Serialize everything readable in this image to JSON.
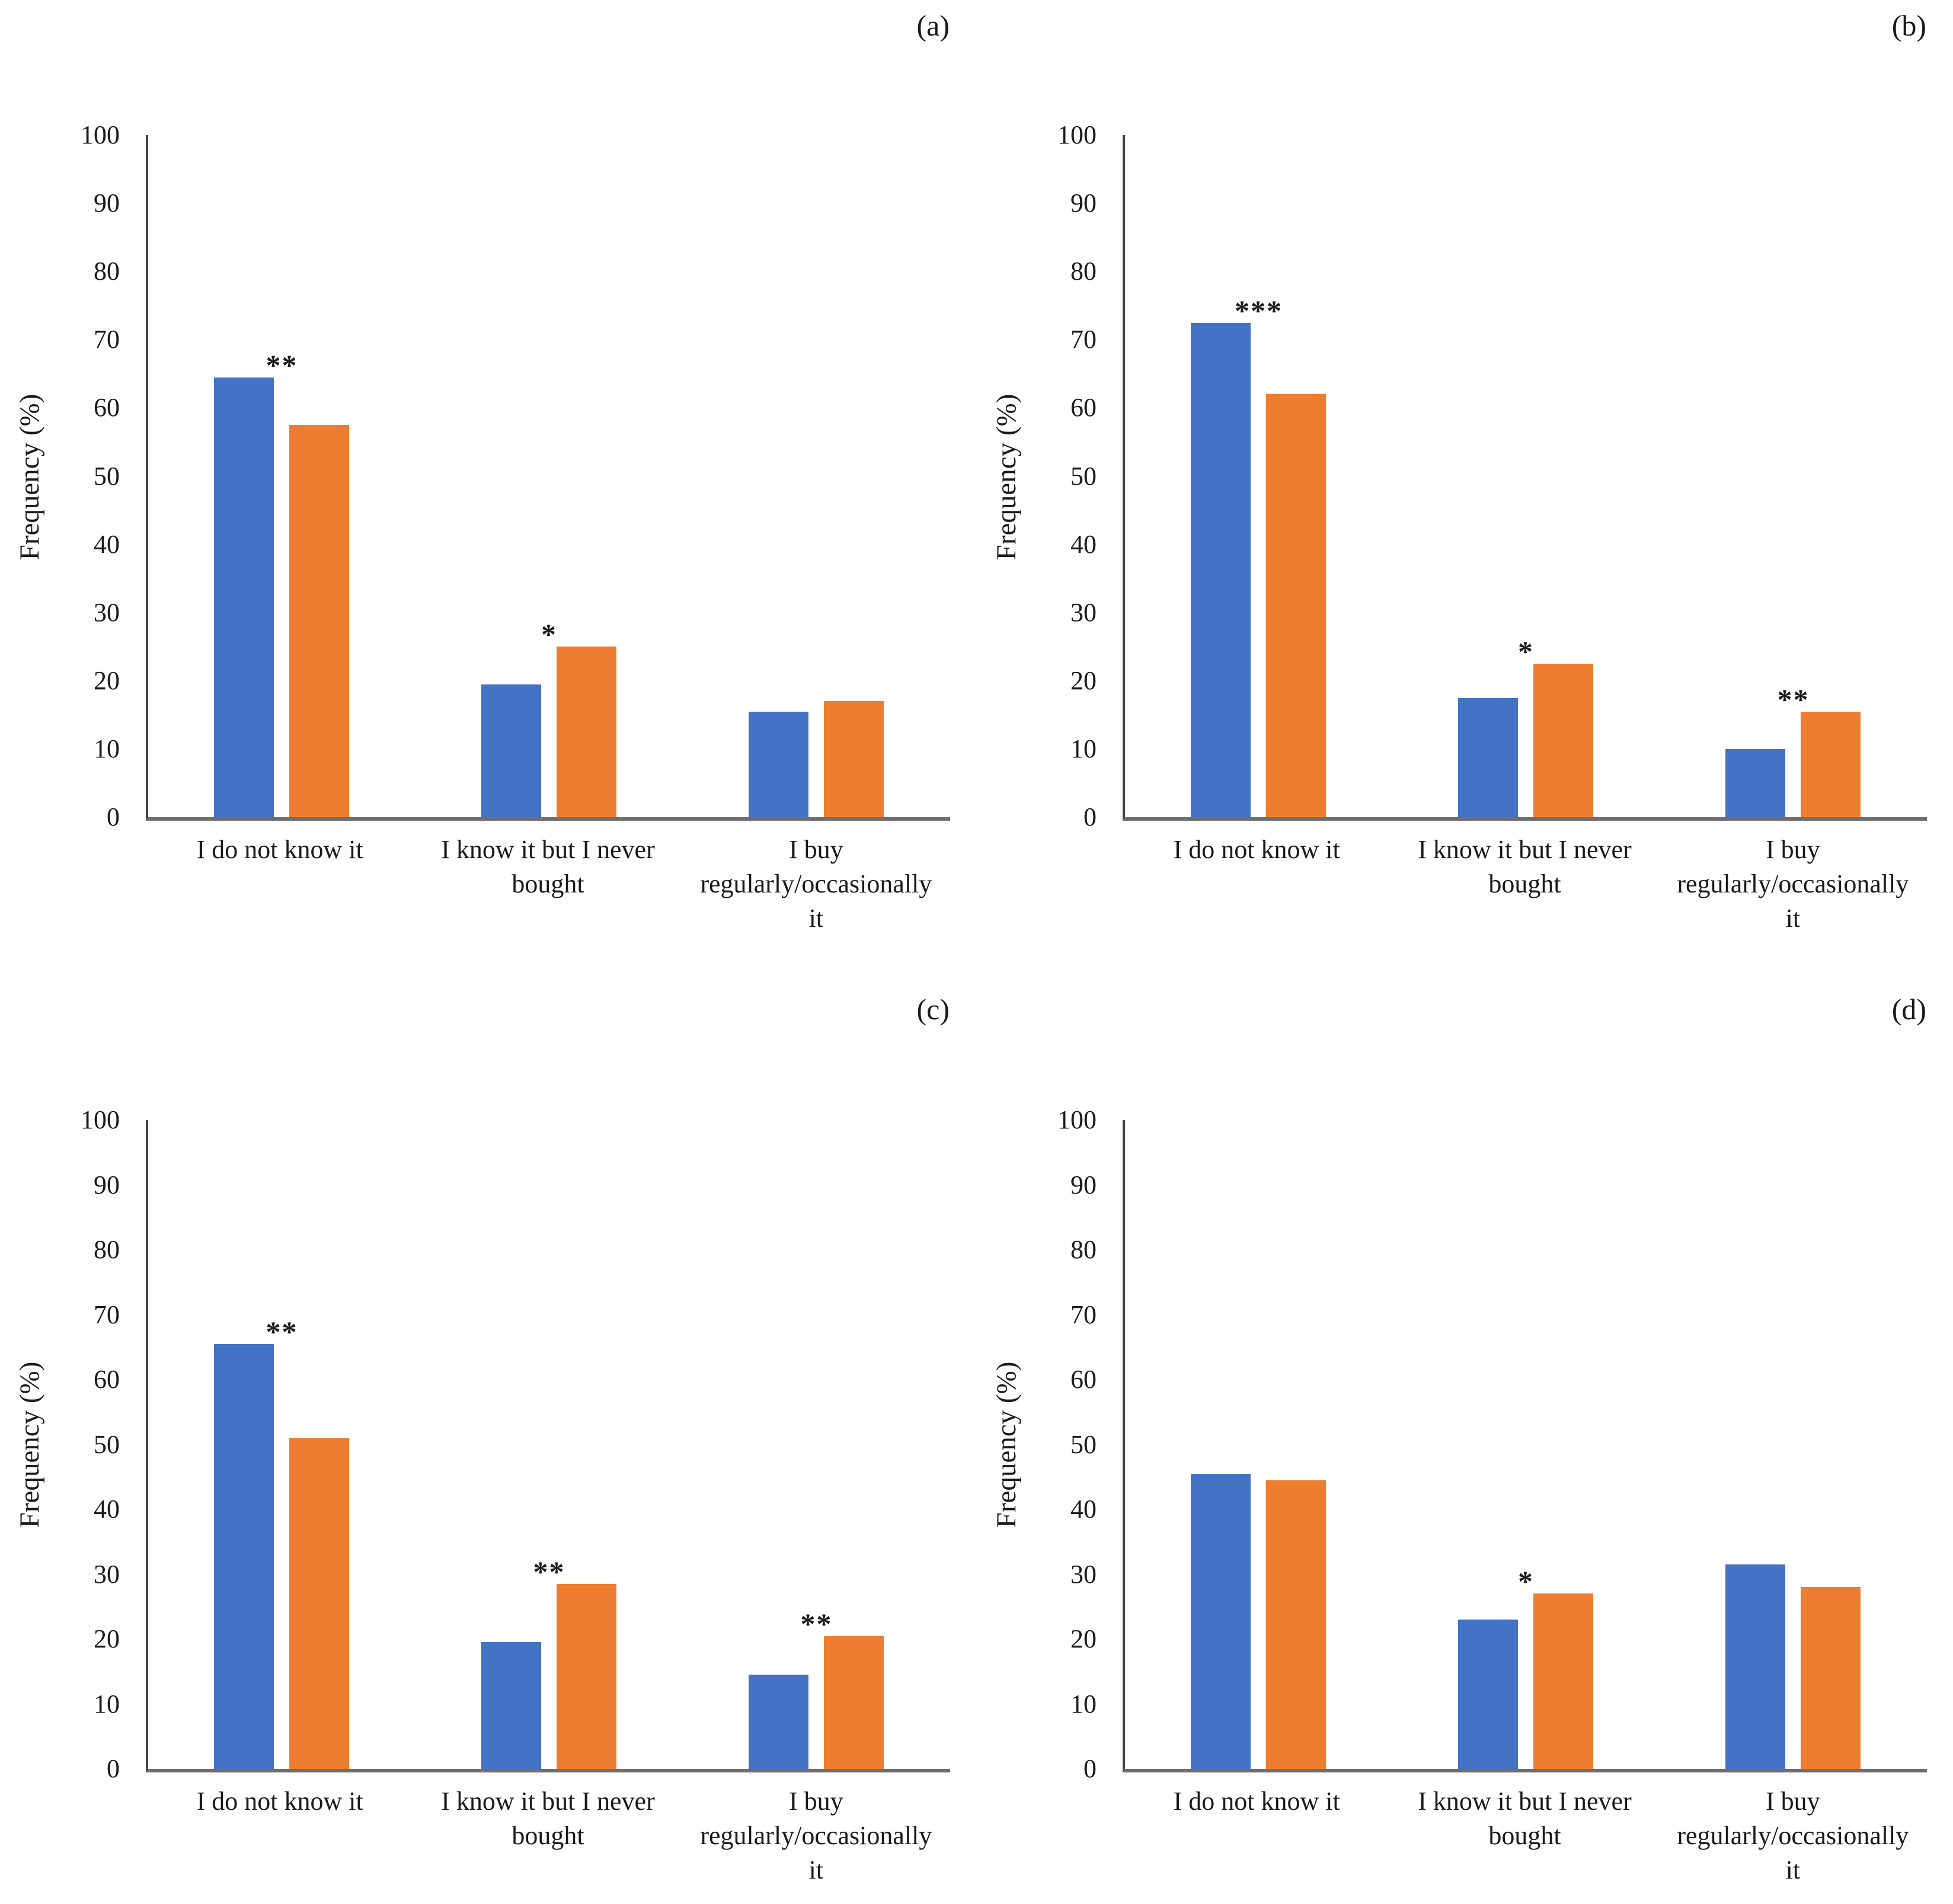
{
  "page": {
    "background": "#ffffff"
  },
  "styles": {
    "y_axis_color": "#454545",
    "x_axis_color": "#6e6e6e",
    "text_color": "#1a1a1a",
    "star_color": "#1a1a1a"
  },
  "chart_data": [
    {
      "type": "bar",
      "panel_label": "(a)",
      "title": "",
      "xlabel": "",
      "ylabel": "Frequency (%)",
      "ylim": [
        0,
        100
      ],
      "yticks": [
        0,
        10,
        20,
        30,
        40,
        50,
        60,
        70,
        80,
        90,
        100
      ],
      "grid": "off",
      "legend": "none",
      "categories": [
        "I do not know it",
        "I know it but I never\nbought",
        "I buy\nregularly/occasionally\nit"
      ],
      "series": [
        {
          "name": "series-1-blue",
          "color": "#4472C4",
          "values": [
            64.5,
            19.5,
            15.5
          ]
        },
        {
          "name": "series-2-orange",
          "color": "#ED7D31",
          "values": [
            57.5,
            25,
            17
          ]
        }
      ],
      "significance": [
        "**",
        "*",
        ""
      ]
    },
    {
      "type": "bar",
      "panel_label": "(b)",
      "title": "",
      "xlabel": "",
      "ylabel": "Frequency (%)",
      "ylim": [
        0,
        100
      ],
      "yticks": [
        0,
        10,
        20,
        30,
        40,
        50,
        60,
        70,
        80,
        90,
        100
      ],
      "grid": "off",
      "legend": "none",
      "categories": [
        "I do not know it",
        "I know it but I never\nbought",
        "I buy\nregularly/occasionally\nit"
      ],
      "series": [
        {
          "name": "series-1-blue",
          "color": "#4472C4",
          "values": [
            72.5,
            17.5,
            10
          ]
        },
        {
          "name": "series-2-orange",
          "color": "#ED7D31",
          "values": [
            62,
            22.5,
            15.5
          ]
        }
      ],
      "significance": [
        "***",
        "*",
        "**"
      ]
    },
    {
      "type": "bar",
      "panel_label": "(c)",
      "title": "",
      "xlabel": "",
      "ylabel": "Frequency (%)",
      "ylim": [
        0,
        100
      ],
      "yticks": [
        0,
        10,
        20,
        30,
        40,
        50,
        60,
        70,
        80,
        90,
        100
      ],
      "grid": "off",
      "legend": "none",
      "categories": [
        "I do not know it",
        "I know it but I never\nbought",
        "I buy\nregularly/occasionally\nit"
      ],
      "series": [
        {
          "name": "series-1-blue",
          "color": "#4472C4",
          "values": [
            65.5,
            19.5,
            14.5
          ]
        },
        {
          "name": "series-2-orange",
          "color": "#ED7D31",
          "values": [
            51,
            28.5,
            20.5
          ]
        }
      ],
      "significance": [
        "**",
        "**",
        "**"
      ]
    },
    {
      "type": "bar",
      "panel_label": "(d)",
      "title": "",
      "xlabel": "",
      "ylabel": "Frequency (%)",
      "ylim": [
        0,
        100
      ],
      "yticks": [
        0,
        10,
        20,
        30,
        40,
        50,
        60,
        70,
        80,
        90,
        100
      ],
      "grid": "off",
      "legend": "none",
      "categories": [
        "I do not know it",
        "I know it but I never\nbought",
        "I buy\nregularly/occasionally\nit"
      ],
      "series": [
        {
          "name": "series-1-blue",
          "color": "#4472C4",
          "values": [
            45.5,
            23,
            31.5
          ]
        },
        {
          "name": "series-2-orange",
          "color": "#ED7D31",
          "values": [
            44.5,
            27,
            28
          ]
        }
      ],
      "significance": [
        "",
        "*",
        ""
      ]
    }
  ]
}
